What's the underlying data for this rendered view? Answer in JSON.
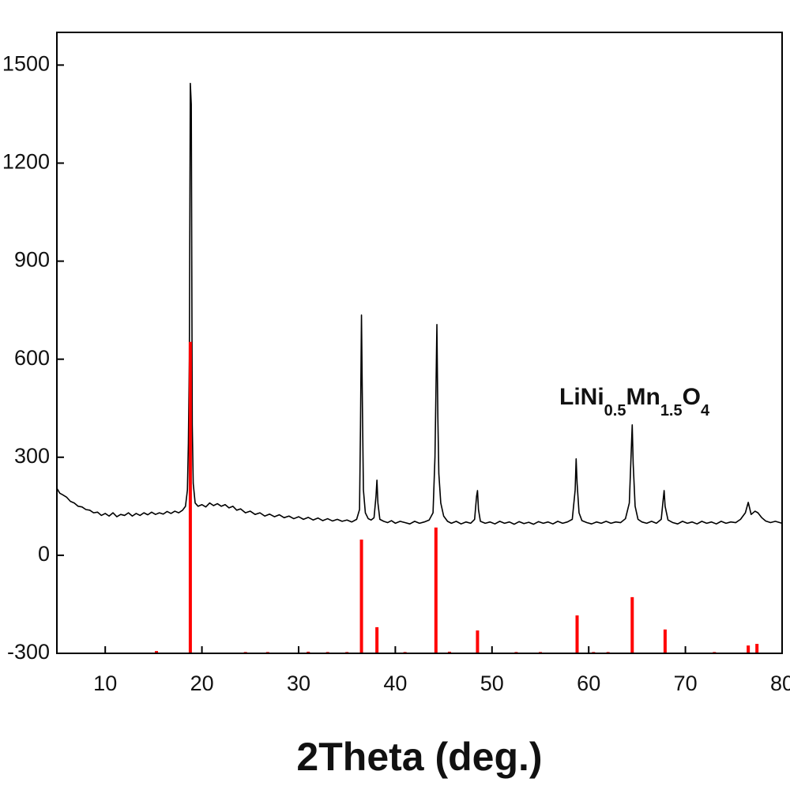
{
  "chart_data": {
    "type": "line",
    "xlabel": "2Theta (deg.)",
    "annotation": [
      "LiNi",
      "0.5",
      "Mn",
      "1.5",
      "O",
      "4"
    ],
    "xlim": [
      5,
      80
    ],
    "xticks": [
      10,
      20,
      30,
      40,
      50,
      60,
      70,
      80
    ],
    "ylim": [
      -300,
      1600
    ],
    "yticks": [
      -300,
      0,
      300,
      600,
      900,
      1200,
      1500
    ],
    "series": [
      {
        "kind": "line",
        "color": "#000000",
        "x": [
          5,
          5.3,
          5.6,
          6,
          6.4,
          6.8,
          7.2,
          7.6,
          8,
          8.4,
          8.8,
          9.2,
          9.6,
          10,
          10.4,
          10.8,
          11.2,
          11.6,
          12,
          12.4,
          12.8,
          13.2,
          13.6,
          14,
          14.4,
          14.8,
          15.2,
          15.6,
          16,
          16.4,
          16.8,
          17.2,
          17.6,
          18,
          18.3,
          18.5,
          18.6,
          18.7,
          18.8,
          18.9,
          19.0,
          19.1,
          19.3,
          19.6,
          20,
          20.4,
          20.8,
          21.2,
          21.6,
          22,
          22.4,
          22.8,
          23.2,
          23.6,
          24,
          24.5,
          25,
          25.5,
          26,
          26.5,
          27,
          27.5,
          28,
          28.5,
          29,
          29.5,
          30,
          30.5,
          31,
          31.5,
          32,
          32.5,
          33,
          33.5,
          34,
          34.5,
          35,
          35.5,
          36,
          36.3,
          36.4,
          36.5,
          36.6,
          36.7,
          36.9,
          37.2,
          37.5,
          37.8,
          38.0,
          38.1,
          38.2,
          38.4,
          38.8,
          39.2,
          39.6,
          40,
          40.5,
          41,
          41.5,
          42,
          42.5,
          43,
          43.5,
          43.9,
          44.1,
          44.2,
          44.3,
          44.4,
          44.5,
          44.7,
          45,
          45.4,
          45.8,
          46.3,
          46.8,
          47.3,
          47.8,
          48.2,
          48.4,
          48.5,
          48.6,
          48.8,
          49.3,
          49.8,
          50.3,
          50.8,
          51.3,
          51.8,
          52.3,
          52.8,
          53.3,
          53.8,
          54.3,
          54.8,
          55.3,
          55.8,
          56.3,
          56.8,
          57.3,
          57.8,
          58.3,
          58.6,
          58.7,
          58.8,
          59,
          59.3,
          59.8,
          60.3,
          60.8,
          61.3,
          61.8,
          62.3,
          62.8,
          63.3,
          63.8,
          64.2,
          64.4,
          64.5,
          64.6,
          64.8,
          65.1,
          65.5,
          66,
          66.5,
          67,
          67.5,
          67.7,
          67.8,
          67.9,
          68.2,
          68.7,
          69.2,
          69.7,
          70.2,
          70.7,
          71.2,
          71.7,
          72.2,
          72.7,
          73.2,
          73.7,
          74.2,
          74.7,
          75.2,
          75.7,
          76.2,
          76.5,
          76.8,
          77.2,
          77.5,
          77.9,
          78.3,
          78.8,
          79.3,
          80
        ],
        "values": [
          205,
          190,
          185,
          178,
          165,
          160,
          150,
          148,
          140,
          138,
          130,
          132,
          122,
          128,
          120,
          130,
          118,
          125,
          122,
          130,
          120,
          128,
          122,
          130,
          124,
          132,
          125,
          130,
          126,
          134,
          128,
          135,
          130,
          138,
          150,
          200,
          343,
          600,
          1444,
          1380,
          400,
          220,
          160,
          150,
          155,
          148,
          160,
          152,
          158,
          150,
          155,
          145,
          150,
          138,
          142,
          130,
          135,
          125,
          130,
          120,
          126,
          118,
          124,
          115,
          120,
          112,
          118,
          110,
          116,
          108,
          114,
          106,
          112,
          105,
          110,
          104,
          108,
          102,
          110,
          140,
          400,
          735,
          450,
          200,
          130,
          112,
          108,
          115,
          180,
          230,
          160,
          110,
          104,
          100,
          106,
          98,
          104,
          100,
          96,
          104,
          98,
          102,
          108,
          130,
          300,
          500,
          706,
          420,
          250,
          160,
          120,
          104,
          98,
          104,
          96,
          102,
          98,
          110,
          180,
          198,
          140,
          104,
          98,
          102,
          96,
          104,
          98,
          102,
          95,
          103,
          97,
          101,
          95,
          103,
          98,
          102,
          96,
          104,
          98,
          102,
          110,
          200,
          295,
          220,
          130,
          106,
          100,
          96,
          102,
          98,
          104,
          98,
          102,
          100,
          112,
          160,
          320,
          399,
          280,
          150,
          110,
          102,
          98,
          104,
          98,
          110,
          170,
          198,
          150,
          108,
          100,
          96,
          104,
          98,
          102,
          96,
          104,
          98,
          102,
          96,
          104,
          98,
          102,
          100,
          110,
          130,
          162,
          125,
          135,
          130,
          115,
          105,
          100,
          104,
          98
        ]
      },
      {
        "kind": "stem",
        "color": "#ff0000",
        "x": [
          15.3,
          18.8,
          24.5,
          26.8,
          31.0,
          33.0,
          35.0,
          36.5,
          38.1,
          41.0,
          44.2,
          45.6,
          48.5,
          52.5,
          55.0,
          58.8,
          60.5,
          62.0,
          64.5,
          67.9,
          73.0,
          76.5,
          77.4
        ],
        "values": [
          -293,
          653,
          -296,
          -296,
          -295,
          -296,
          -296,
          48,
          -220,
          -296,
          85,
          -295,
          -230,
          -296,
          -296,
          -184,
          -296,
          -296,
          -128,
          -227,
          -296,
          -276,
          -271
        ]
      }
    ]
  }
}
